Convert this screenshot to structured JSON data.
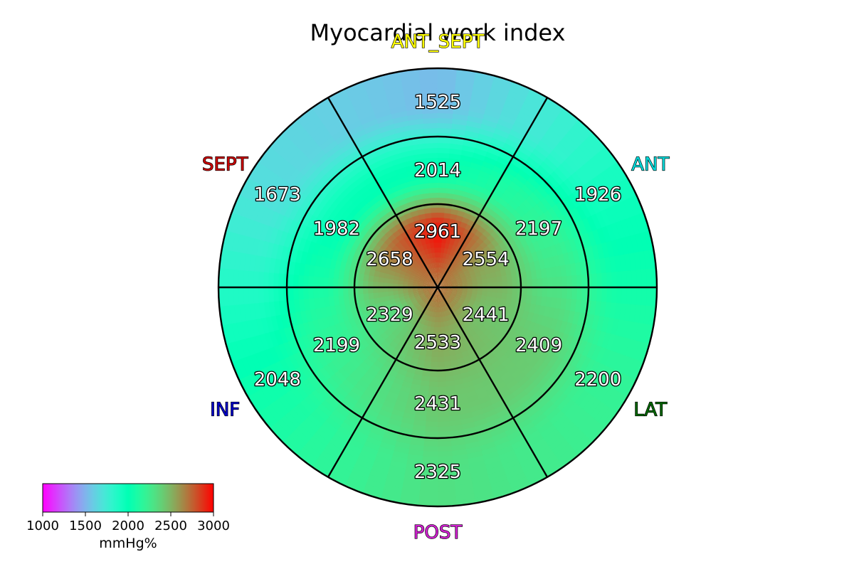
{
  "chart_data": {
    "type": "bullseye",
    "title": "Myocardial work index",
    "unit": "mmHg%",
    "value_range": [
      1000,
      3000
    ],
    "colormap": "rainbow",
    "colorbar": {
      "label": "mmHg%",
      "ticks": [
        1000,
        1500,
        2000,
        2500,
        3000
      ],
      "tick_labels": [
        "1000",
        "1500",
        "2000",
        "2500",
        "3000"
      ],
      "placement": "bottom-left"
    },
    "walls": [
      {
        "name": "ANT_SEPT",
        "color": "#ffff00"
      },
      {
        "name": "ANT",
        "color": "#00d8d8"
      },
      {
        "name": "LAT",
        "color": "#006400"
      },
      {
        "name": "POST",
        "color": "#d020d0"
      },
      {
        "name": "INF",
        "color": "#0000c8"
      },
      {
        "name": "SEPT",
        "color": "#c80000"
      }
    ],
    "rings": [
      {
        "name": "basal",
        "values": [
          1525,
          1926,
          2200,
          2325,
          2048,
          1673
        ]
      },
      {
        "name": "mid",
        "values": [
          2014,
          2197,
          2409,
          2431,
          2199,
          1982
        ]
      },
      {
        "name": "apical",
        "values": [
          2961,
          2554,
          2441,
          2533,
          2329,
          2658
        ]
      }
    ]
  }
}
